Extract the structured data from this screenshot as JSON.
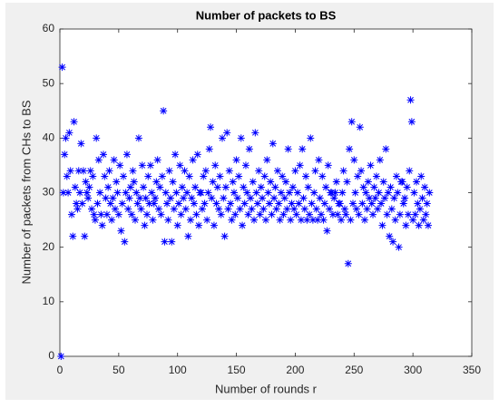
{
  "chart_data": {
    "type": "scatter",
    "title": "Number of packets to BS",
    "x_label": "Number of rounds r",
    "y_label": "Number of packets from CHs to BS",
    "xlim": [
      0,
      350
    ],
    "xticks": [
      0,
      50,
      100,
      150,
      200,
      250,
      300,
      350
    ],
    "ylim": [
      0,
      60
    ],
    "yticks": [
      0,
      10,
      20,
      30,
      40,
      50,
      60
    ],
    "marker": "asterisk",
    "series": [
      {
        "color": "#0000ff",
        "x": [
          1,
          2,
          3,
          4,
          5,
          6,
          7,
          8,
          9,
          10,
          11,
          12,
          13,
          14,
          15,
          16,
          17,
          18,
          19,
          20,
          21,
          22,
          23,
          24,
          25,
          26,
          27,
          28,
          29,
          30,
          31,
          32,
          33,
          34,
          35,
          36,
          37,
          38,
          39,
          40,
          41,
          42,
          43,
          44,
          45,
          46,
          47,
          48,
          49,
          50,
          51,
          52,
          53,
          54,
          55,
          56,
          57,
          58,
          59,
          60,
          61,
          62,
          63,
          64,
          65,
          66,
          67,
          68,
          69,
          70,
          71,
          72,
          73,
          74,
          75,
          76,
          77,
          78,
          79,
          80,
          81,
          82,
          83,
          84,
          85,
          86,
          87,
          88,
          89,
          90,
          91,
          92,
          93,
          94,
          95,
          96,
          97,
          98,
          99,
          100,
          101,
          102,
          103,
          104,
          105,
          106,
          107,
          108,
          109,
          110,
          111,
          112,
          113,
          114,
          115,
          116,
          117,
          118,
          119,
          120,
          121,
          122,
          123,
          124,
          125,
          126,
          127,
          128,
          129,
          130,
          131,
          132,
          133,
          134,
          135,
          136,
          137,
          138,
          139,
          140,
          141,
          142,
          143,
          144,
          145,
          146,
          147,
          148,
          149,
          150,
          151,
          152,
          153,
          154,
          155,
          156,
          157,
          158,
          159,
          160,
          161,
          162,
          163,
          164,
          165,
          166,
          167,
          168,
          169,
          170,
          171,
          172,
          173,
          174,
          175,
          176,
          177,
          178,
          179,
          180,
          181,
          182,
          183,
          184,
          185,
          186,
          187,
          188,
          189,
          190,
          191,
          192,
          193,
          194,
          195,
          196,
          197,
          198,
          199,
          200,
          201,
          202,
          203,
          204,
          205,
          206,
          207,
          208,
          209,
          210,
          211,
          212,
          213,
          214,
          215,
          216,
          217,
          218,
          219,
          220,
          221,
          222,
          223,
          224,
          225,
          226,
          227,
          228,
          229,
          230,
          231,
          232,
          233,
          234,
          235,
          236,
          237,
          238,
          239,
          240,
          241,
          242,
          243,
          244,
          245,
          246,
          247,
          248,
          249,
          250,
          251,
          252,
          253,
          254,
          255,
          256,
          257,
          258,
          259,
          260,
          261,
          262,
          263,
          264,
          265,
          266,
          267,
          268,
          269,
          270,
          271,
          272,
          273,
          274,
          275,
          276,
          277,
          278,
          279,
          280,
          281,
          282,
          283,
          284,
          285,
          286,
          287,
          288,
          289,
          290,
          291,
          292,
          293,
          294,
          295,
          296,
          297,
          298,
          299,
          300,
          301,
          302,
          303,
          304,
          305,
          306,
          307,
          308,
          309,
          310,
          311,
          312,
          313,
          314
        ],
        "values": [
          0,
          53,
          30,
          37,
          40,
          33,
          30,
          41,
          34,
          26,
          22,
          43,
          31,
          28,
          27,
          34,
          30,
          39,
          28,
          34,
          22,
          32,
          30,
          29,
          31,
          34,
          27,
          33,
          26,
          25,
          40,
          28,
          36,
          30,
          26,
          24,
          37,
          33,
          29,
          26,
          31,
          34,
          28,
          25,
          29,
          36,
          27,
          32,
          30,
          26,
          35,
          23,
          28,
          33,
          21,
          30,
          37,
          27,
          29,
          31,
          26,
          34,
          32,
          25,
          30,
          28,
          40,
          29,
          27,
          35,
          31,
          24,
          29,
          26,
          33,
          28,
          35,
          30,
          25,
          28,
          29,
          32,
          36,
          27,
          31,
          26,
          33,
          45,
          21,
          30,
          28,
          25,
          34,
          29,
          21,
          32,
          27,
          37,
          30,
          24,
          28,
          35,
          26,
          31,
          29,
          34,
          27,
          30,
          22,
          33,
          25,
          29,
          36,
          28,
          31,
          26,
          37,
          24,
          30,
          30,
          27,
          33,
          28,
          34,
          25,
          30,
          38,
          42,
          29,
          32,
          24,
          35,
          28,
          31,
          27,
          33,
          26,
          40,
          29,
          22,
          31,
          41,
          27,
          34,
          28,
          25,
          32,
          30,
          26,
          36,
          29,
          33,
          27,
          40,
          24,
          31,
          28,
          35,
          30,
          26,
          38,
          29,
          27,
          32,
          25,
          41,
          30,
          28,
          34,
          26,
          31,
          29,
          27,
          33,
          25,
          36,
          30,
          28,
          32,
          26,
          39,
          29,
          31,
          27,
          34,
          28,
          25,
          30,
          33,
          26,
          29,
          32,
          27,
          38,
          30,
          25,
          28,
          31,
          27,
          34,
          26,
          30,
          28,
          35,
          25,
          38,
          29,
          27,
          33,
          25,
          31,
          26,
          40,
          28,
          25,
          30,
          34,
          27,
          25,
          36,
          29,
          26,
          33,
          25,
          28,
          31,
          23,
          35,
          27,
          30,
          30,
          26,
          29,
          30,
          32,
          26,
          28,
          28,
          25,
          30,
          34,
          27,
          26,
          32,
          17,
          38,
          25,
          43,
          28,
          36,
          30,
          27,
          33,
          26,
          42,
          34,
          28,
          31,
          25,
          30,
          27,
          32,
          29,
          35,
          28,
          26,
          31,
          29,
          33,
          27,
          30,
          36,
          28,
          24,
          32,
          29,
          38,
          26,
          30,
          22,
          31,
          27,
          21,
          29,
          25,
          33,
          30,
          20,
          26,
          32,
          32,
          28,
          29,
          24,
          31,
          26,
          34,
          47,
          43,
          25,
          30,
          26,
          32,
          28,
          24,
          27,
          33,
          29,
          25,
          31,
          26,
          28,
          24,
          30
        ]
      }
    ]
  }
}
